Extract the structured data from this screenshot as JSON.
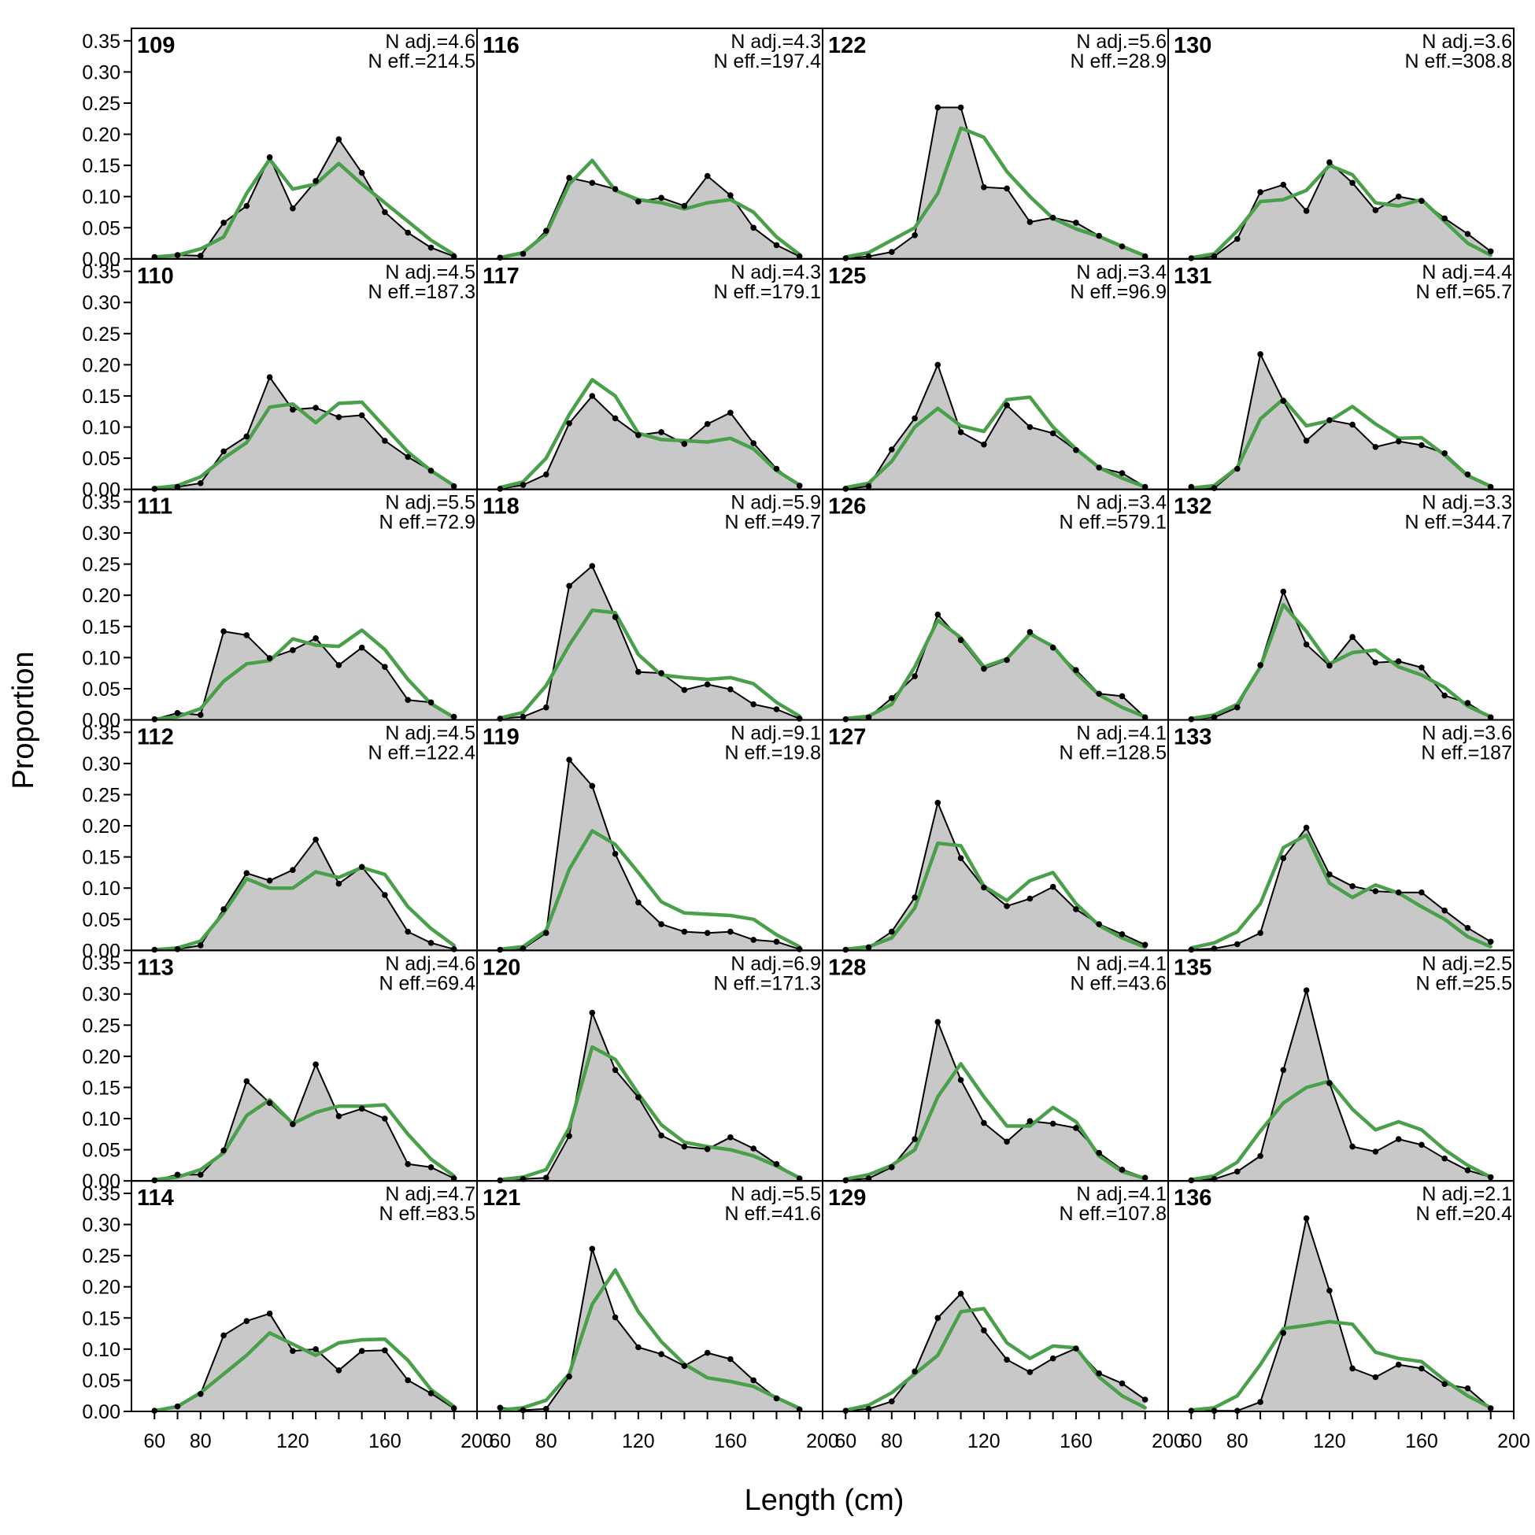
{
  "chart_data": {
    "type": "line",
    "xlabel": "Length (cm)",
    "ylabel": "Proportion",
    "xlim": [
      50,
      200
    ],
    "ylim": [
      0,
      0.37
    ],
    "x_ticks": [
      60,
      80,
      120,
      160,
      200
    ],
    "y_ticks": [
      "0.00",
      "0.05",
      "0.10",
      "0.15",
      "0.20",
      "0.25",
      "0.30",
      "0.35"
    ],
    "grid": false,
    "layout": {
      "columns": 4,
      "rows": 6
    },
    "x": [
      60,
      70,
      80,
      90,
      100,
      110,
      120,
      130,
      140,
      150,
      160,
      170,
      180,
      190
    ],
    "panels": [
      {
        "label": "109",
        "n_adj": "N adj.=4.6",
        "n_eff": "N eff.=214.5",
        "observed": [
          0.003,
          0.006,
          0.005,
          0.058,
          0.085,
          0.163,
          0.081,
          0.125,
          0.192,
          0.138,
          0.075,
          0.042,
          0.018,
          0.004
        ],
        "expected": [
          0.003,
          0.006,
          0.016,
          0.035,
          0.105,
          0.16,
          0.112,
          0.12,
          0.153,
          0.12,
          0.09,
          0.06,
          0.03,
          0.007
        ]
      },
      {
        "label": "110",
        "n_adj": "N adj.=4.5",
        "n_eff": "N eff.=187.3",
        "observed": [
          0.001,
          0.004,
          0.01,
          0.061,
          0.085,
          0.18,
          0.128,
          0.131,
          0.116,
          0.119,
          0.078,
          0.052,
          0.03,
          0.005
        ],
        "expected": [
          0.002,
          0.006,
          0.02,
          0.05,
          0.075,
          0.132,
          0.137,
          0.107,
          0.138,
          0.14,
          0.1,
          0.06,
          0.03,
          0.006
        ]
      },
      {
        "label": "111",
        "n_adj": "N adj.=5.5",
        "n_eff": "N eff.=72.9",
        "observed": [
          0.001,
          0.011,
          0.008,
          0.142,
          0.136,
          0.099,
          0.112,
          0.131,
          0.088,
          0.116,
          0.085,
          0.032,
          0.028,
          0.005
        ],
        "expected": [
          0.001,
          0.005,
          0.018,
          0.062,
          0.09,
          0.095,
          0.13,
          0.12,
          0.118,
          0.144,
          0.113,
          0.065,
          0.026,
          0.004
        ]
      },
      {
        "label": "112",
        "n_adj": "N adj.=4.5",
        "n_eff": "N eff.=122.4",
        "observed": [
          0.001,
          0.002,
          0.008,
          0.066,
          0.124,
          0.112,
          0.129,
          0.178,
          0.107,
          0.134,
          0.089,
          0.03,
          0.012,
          0.002
        ],
        "expected": [
          0.001,
          0.004,
          0.015,
          0.06,
          0.115,
          0.1,
          0.1,
          0.126,
          0.117,
          0.133,
          0.122,
          0.07,
          0.035,
          0.008
        ]
      },
      {
        "label": "113",
        "n_adj": "N adj.=4.6",
        "n_eff": "N eff.=69.4",
        "observed": [
          0.001,
          0.01,
          0.01,
          0.049,
          0.16,
          0.125,
          0.091,
          0.187,
          0.104,
          0.116,
          0.1,
          0.027,
          0.022,
          0.004
        ],
        "expected": [
          0.002,
          0.006,
          0.018,
          0.045,
          0.105,
          0.13,
          0.092,
          0.11,
          0.12,
          0.12,
          0.122,
          0.075,
          0.035,
          0.008
        ]
      },
      {
        "label": "114",
        "n_adj": "N adj.=4.7",
        "n_eff": "N eff.=83.5",
        "observed": [
          0.001,
          0.008,
          0.028,
          0.122,
          0.145,
          0.157,
          0.097,
          0.1,
          0.066,
          0.097,
          0.098,
          0.05,
          0.029,
          0.005
        ],
        "expected": [
          0.001,
          0.008,
          0.03,
          0.06,
          0.09,
          0.126,
          0.108,
          0.09,
          0.11,
          0.115,
          0.116,
          0.082,
          0.035,
          0.008
        ]
      },
      {
        "label": "116",
        "n_adj": "N adj.=4.3",
        "n_eff": "N eff.=197.4",
        "observed": [
          0.002,
          0.008,
          0.045,
          0.13,
          0.122,
          0.112,
          0.092,
          0.098,
          0.085,
          0.133,
          0.102,
          0.05,
          0.022,
          0.004
        ],
        "expected": [
          0.002,
          0.01,
          0.04,
          0.12,
          0.158,
          0.11,
          0.095,
          0.09,
          0.08,
          0.09,
          0.095,
          0.075,
          0.035,
          0.007
        ]
      },
      {
        "label": "117",
        "n_adj": "N adj.=4.3",
        "n_eff": "N eff.=179.1",
        "observed": [
          0.001,
          0.007,
          0.024,
          0.106,
          0.15,
          0.114,
          0.087,
          0.092,
          0.073,
          0.105,
          0.123,
          0.074,
          0.033,
          0.006
        ],
        "expected": [
          0.003,
          0.012,
          0.05,
          0.12,
          0.176,
          0.15,
          0.09,
          0.08,
          0.078,
          0.076,
          0.082,
          0.065,
          0.03,
          0.007
        ]
      },
      {
        "label": "118",
        "n_adj": "N adj.=5.9",
        "n_eff": "N eff.=49.7",
        "observed": [
          0.002,
          0.005,
          0.02,
          0.215,
          0.247,
          0.165,
          0.077,
          0.075,
          0.048,
          0.057,
          0.049,
          0.025,
          0.017,
          0.002
        ],
        "expected": [
          0.003,
          0.012,
          0.055,
          0.12,
          0.176,
          0.172,
          0.105,
          0.072,
          0.068,
          0.065,
          0.068,
          0.058,
          0.028,
          0.006
        ]
      },
      {
        "label": "119",
        "n_adj": "N adj.=9.1",
        "n_eff": "N eff.=19.8",
        "observed": [
          0.001,
          0.003,
          0.028,
          0.306,
          0.264,
          0.155,
          0.077,
          0.042,
          0.03,
          0.028,
          0.03,
          0.017,
          0.014,
          0.002
        ],
        "expected": [
          0.002,
          0.006,
          0.032,
          0.13,
          0.192,
          0.17,
          0.125,
          0.078,
          0.06,
          0.058,
          0.056,
          0.05,
          0.025,
          0.006
        ]
      },
      {
        "label": "120",
        "n_adj": "N adj.=6.9",
        "n_eff": "N eff.=171.3",
        "observed": [
          0.001,
          0.003,
          0.005,
          0.072,
          0.27,
          0.178,
          0.134,
          0.073,
          0.055,
          0.051,
          0.07,
          0.052,
          0.027,
          0.004
        ],
        "expected": [
          0.002,
          0.006,
          0.018,
          0.085,
          0.215,
          0.195,
          0.14,
          0.09,
          0.062,
          0.055,
          0.05,
          0.04,
          0.024,
          0.005
        ]
      },
      {
        "label": "121",
        "n_adj": "N adj.=5.5",
        "n_eff": "N eff.=41.6",
        "observed": [
          0.006,
          0.002,
          0.004,
          0.056,
          0.261,
          0.151,
          0.103,
          0.092,
          0.073,
          0.094,
          0.084,
          0.05,
          0.021,
          0.003
        ],
        "expected": [
          0.002,
          0.006,
          0.018,
          0.06,
          0.172,
          0.227,
          0.16,
          0.112,
          0.076,
          0.054,
          0.048,
          0.04,
          0.022,
          0.005
        ]
      },
      {
        "label": "122",
        "n_adj": "N adj.=5.6",
        "n_eff": "N eff.=28.9",
        "observed": [
          0.001,
          0.004,
          0.011,
          0.038,
          0.243,
          0.243,
          0.115,
          0.113,
          0.059,
          0.066,
          0.058,
          0.037,
          0.02,
          0.004
        ],
        "expected": [
          0.003,
          0.01,
          0.03,
          0.05,
          0.105,
          0.21,
          0.195,
          0.14,
          0.1,
          0.065,
          0.048,
          0.036,
          0.02,
          0.005
        ]
      },
      {
        "label": "125",
        "n_adj": "N adj.=3.4",
        "n_eff": "N eff.=96.9",
        "observed": [
          0.001,
          0.005,
          0.064,
          0.114,
          0.2,
          0.092,
          0.072,
          0.135,
          0.1,
          0.09,
          0.063,
          0.035,
          0.026,
          0.004
        ],
        "expected": [
          0.003,
          0.01,
          0.045,
          0.1,
          0.13,
          0.102,
          0.093,
          0.144,
          0.148,
          0.1,
          0.065,
          0.035,
          0.018,
          0.004
        ]
      },
      {
        "label": "126",
        "n_adj": "N adj.=3.4",
        "n_eff": "N eff.=579.1",
        "observed": [
          0.001,
          0.004,
          0.035,
          0.07,
          0.169,
          0.128,
          0.082,
          0.096,
          0.141,
          0.116,
          0.08,
          0.042,
          0.038,
          0.004
        ],
        "expected": [
          0.002,
          0.006,
          0.025,
          0.085,
          0.16,
          0.132,
          0.085,
          0.098,
          0.138,
          0.118,
          0.075,
          0.04,
          0.02,
          0.005
        ]
      },
      {
        "label": "127",
        "n_adj": "N adj.=4.1",
        "n_eff": "N eff.=128.5",
        "observed": [
          0.001,
          0.005,
          0.03,
          0.085,
          0.237,
          0.148,
          0.101,
          0.071,
          0.083,
          0.102,
          0.066,
          0.042,
          0.026,
          0.009
        ],
        "expected": [
          0.002,
          0.006,
          0.02,
          0.068,
          0.172,
          0.168,
          0.103,
          0.08,
          0.112,
          0.125,
          0.075,
          0.04,
          0.02,
          0.005
        ]
      },
      {
        "label": "128",
        "n_adj": "N adj.=4.1",
        "n_eff": "N eff.=43.6",
        "observed": [
          0.001,
          0.004,
          0.022,
          0.067,
          0.255,
          0.162,
          0.093,
          0.063,
          0.096,
          0.092,
          0.085,
          0.045,
          0.018,
          0.005
        ],
        "expected": [
          0.003,
          0.01,
          0.025,
          0.05,
          0.135,
          0.188,
          0.135,
          0.088,
          0.088,
          0.118,
          0.095,
          0.04,
          0.015,
          0.004
        ]
      },
      {
        "label": "129",
        "n_adj": "N adj.=4.1",
        "n_eff": "N eff.=107.8",
        "observed": [
          0.001,
          0.004,
          0.016,
          0.064,
          0.15,
          0.189,
          0.13,
          0.083,
          0.063,
          0.085,
          0.101,
          0.061,
          0.045,
          0.019
        ],
        "expected": [
          0.002,
          0.01,
          0.03,
          0.06,
          0.09,
          0.16,
          0.165,
          0.11,
          0.085,
          0.105,
          0.102,
          0.055,
          0.025,
          0.006
        ]
      },
      {
        "label": "130",
        "n_adj": "N adj.=3.6",
        "n_eff": "N eff.=308.8",
        "observed": [
          0.001,
          0.004,
          0.032,
          0.107,
          0.119,
          0.077,
          0.155,
          0.122,
          0.078,
          0.1,
          0.093,
          0.065,
          0.04,
          0.012
        ],
        "expected": [
          0.002,
          0.008,
          0.045,
          0.092,
          0.095,
          0.11,
          0.15,
          0.135,
          0.09,
          0.085,
          0.095,
          0.06,
          0.025,
          0.006
        ]
      },
      {
        "label": "131",
        "n_adj": "N adj.=4.4",
        "n_eff": "N eff.=65.7",
        "observed": [
          0.004,
          0.002,
          0.033,
          0.217,
          0.142,
          0.078,
          0.111,
          0.104,
          0.068,
          0.077,
          0.071,
          0.058,
          0.024,
          0.004
        ],
        "expected": [
          0.002,
          0.006,
          0.035,
          0.113,
          0.145,
          0.102,
          0.11,
          0.133,
          0.105,
          0.082,
          0.083,
          0.055,
          0.022,
          0.005
        ]
      },
      {
        "label": "132",
        "n_adj": "N adj.=3.3",
        "n_eff": "N eff.=344.7",
        "observed": [
          0.001,
          0.004,
          0.02,
          0.088,
          0.206,
          0.121,
          0.087,
          0.133,
          0.092,
          0.094,
          0.084,
          0.039,
          0.027,
          0.004
        ],
        "expected": [
          0.002,
          0.008,
          0.025,
          0.085,
          0.185,
          0.142,
          0.09,
          0.108,
          0.112,
          0.085,
          0.072,
          0.052,
          0.022,
          0.005
        ]
      },
      {
        "label": "133",
        "n_adj": "N adj.=3.6",
        "n_eff": "N eff.=187",
        "observed": [
          0.001,
          0.003,
          0.01,
          0.028,
          0.148,
          0.197,
          0.122,
          0.103,
          0.095,
          0.093,
          0.093,
          0.064,
          0.036,
          0.014
        ],
        "expected": [
          0.004,
          0.012,
          0.03,
          0.075,
          0.165,
          0.185,
          0.108,
          0.085,
          0.105,
          0.092,
          0.07,
          0.05,
          0.022,
          0.006
        ]
      },
      {
        "label": "135",
        "n_adj": "N adj.=2.5",
        "n_eff": "N eff.=25.5",
        "observed": [
          0.001,
          0.003,
          0.015,
          0.04,
          0.178,
          0.306,
          0.157,
          0.055,
          0.047,
          0.067,
          0.058,
          0.036,
          0.017,
          0.006
        ],
        "expected": [
          0.002,
          0.008,
          0.03,
          0.08,
          0.125,
          0.15,
          0.16,
          0.115,
          0.082,
          0.095,
          0.082,
          0.05,
          0.025,
          0.006
        ]
      },
      {
        "label": "136",
        "n_adj": "N adj.=2.1",
        "n_eff": "N eff.=20.4",
        "observed": [
          0.001,
          0.001,
          0.001,
          0.015,
          0.126,
          0.31,
          0.194,
          0.069,
          0.055,
          0.075,
          0.069,
          0.044,
          0.037,
          0.005
        ],
        "expected": [
          0.002,
          0.006,
          0.025,
          0.075,
          0.133,
          0.138,
          0.144,
          0.14,
          0.095,
          0.085,
          0.08,
          0.05,
          0.025,
          0.006
        ]
      }
    ]
  }
}
